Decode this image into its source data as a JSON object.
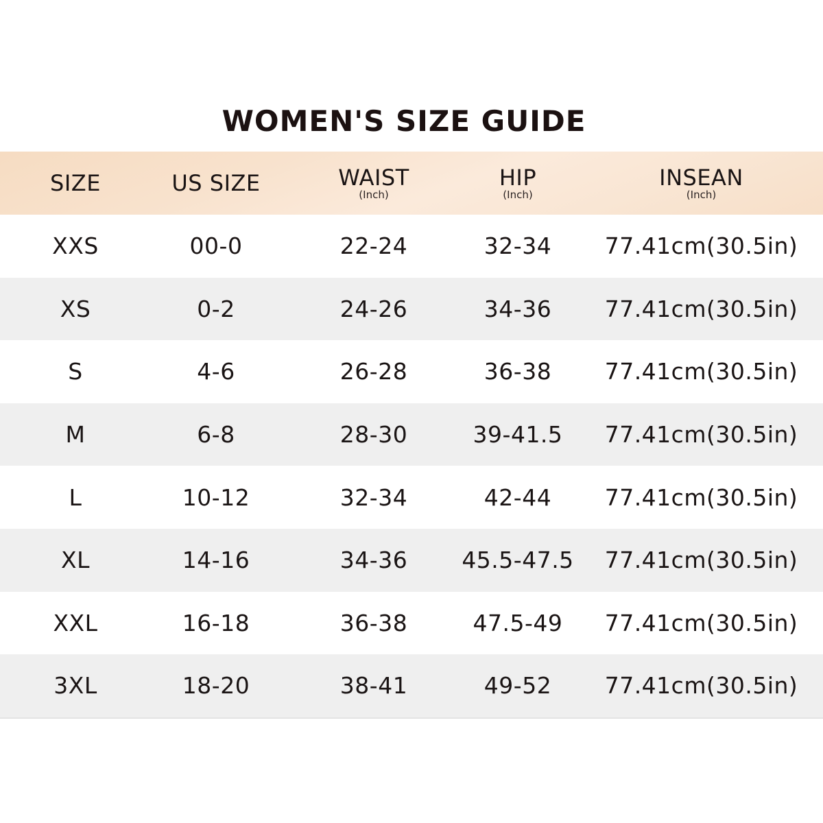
{
  "title": "WOMEN'S SIZE GUIDE",
  "headers": [
    {
      "label": "SIZE",
      "sub": ""
    },
    {
      "label": "US SIZE",
      "sub": ""
    },
    {
      "label": "WAIST",
      "sub": "(Inch)"
    },
    {
      "label": "HIP",
      "sub": "(Inch)"
    },
    {
      "label": "INSEAN",
      "sub": "(Inch)"
    }
  ],
  "rows": [
    [
      "XXS",
      "00-0",
      "22-24",
      "32-34",
      "77.41cm(30.5in)"
    ],
    [
      "XS",
      "0-2",
      "24-26",
      "34-36",
      "77.41cm(30.5in)"
    ],
    [
      "S",
      "4-6",
      "26-28",
      "36-38",
      "77.41cm(30.5in)"
    ],
    [
      "M",
      "6-8",
      "28-30",
      "39-41.5",
      "77.41cm(30.5in)"
    ],
    [
      "L",
      "10-12",
      "32-34",
      "42-44",
      "77.41cm(30.5in)"
    ],
    [
      "XL",
      "14-16",
      "34-36",
      "45.5-47.5",
      "77.41cm(30.5in)"
    ],
    [
      "XXL",
      "16-18",
      "36-38",
      "47.5-49",
      "77.41cm(30.5in)"
    ],
    [
      "3XL",
      "18-20",
      "38-41",
      "49-52",
      "77.41cm(30.5in)"
    ]
  ],
  "colors": {
    "header_bg": "#f7dfc8",
    "alt_row_bg": "#efefef",
    "text": "#1a1414"
  }
}
